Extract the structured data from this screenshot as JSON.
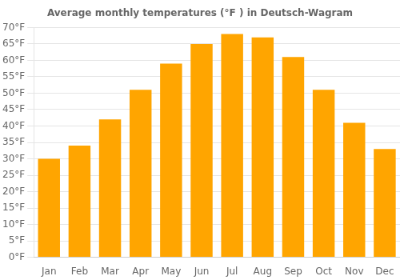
{
  "chart_data": {
    "type": "bar",
    "title": "Average monthly temperatures (°F ) in Deutsch-Wagram",
    "categories": [
      "Jan",
      "Feb",
      "Mar",
      "Apr",
      "May",
      "Jun",
      "Jul",
      "Aug",
      "Sep",
      "Oct",
      "Nov",
      "Dec"
    ],
    "values": [
      30,
      34,
      42,
      51,
      59,
      65,
      68,
      67,
      61,
      51,
      41,
      33
    ],
    "color": "#FFA500",
    "ylim": [
      0,
      70
    ],
    "yticks": [
      {
        "value": 0,
        "label": "0°F"
      },
      {
        "value": 5,
        "label": "5°F"
      },
      {
        "value": 10,
        "label": "10°F"
      },
      {
        "value": 15,
        "label": "15°F"
      },
      {
        "value": 20,
        "label": "20°F"
      },
      {
        "value": 25,
        "label": "25°F"
      },
      {
        "value": 30,
        "label": "30°F"
      },
      {
        "value": 35,
        "label": "35°F"
      },
      {
        "value": 40,
        "label": "40°F"
      },
      {
        "value": 45,
        "label": "45°F"
      },
      {
        "value": 50,
        "label": "50°F"
      },
      {
        "value": 55,
        "label": "55°F"
      },
      {
        "value": 60,
        "label": "60°F"
      },
      {
        "value": 65,
        "label": "65°F"
      },
      {
        "value": 70,
        "label": "70°F"
      }
    ],
    "grid": true
  }
}
